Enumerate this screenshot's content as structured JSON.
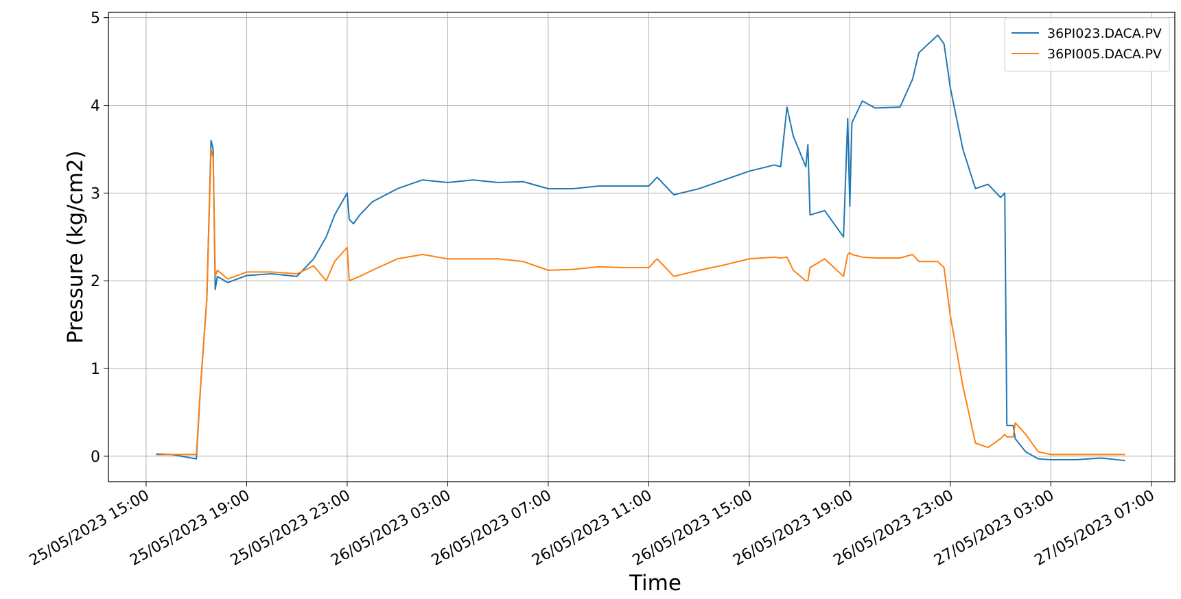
{
  "chart_data": {
    "type": "line",
    "x_label": "Time",
    "y_label": "Pressure (kg/cm2)",
    "x": [
      "2023-05-25T15:24",
      "2023-05-25T16:00",
      "2023-05-25T17:00",
      "2023-05-25T17:10",
      "2023-05-25T17:25",
      "2023-05-25T17:35",
      "2023-05-25T17:40",
      "2023-05-25T17:45",
      "2023-05-25T17:50",
      "2023-05-25T18:15",
      "2023-05-25T19:00",
      "2023-05-25T20:00",
      "2023-05-25T21:00",
      "2023-05-25T21:40",
      "2023-05-25T22:10",
      "2023-05-25T22:30",
      "2023-05-25T23:00",
      "2023-05-25T23:05",
      "2023-05-25T23:15",
      "2023-05-25T23:30",
      "2023-05-26T00:00",
      "2023-05-26T01:00",
      "2023-05-26T02:00",
      "2023-05-26T03:00",
      "2023-05-26T04:00",
      "2023-05-26T05:00",
      "2023-05-26T06:00",
      "2023-05-26T07:00",
      "2023-05-26T08:00",
      "2023-05-26T09:00",
      "2023-05-26T10:00",
      "2023-05-26T11:00",
      "2023-05-26T11:20",
      "2023-05-26T12:00",
      "2023-05-26T13:00",
      "2023-05-26T14:00",
      "2023-05-26T15:00",
      "2023-05-26T16:00",
      "2023-05-26T16:15",
      "2023-05-26T16:30",
      "2023-05-26T16:45",
      "2023-05-26T17:15",
      "2023-05-26T17:20",
      "2023-05-26T17:25",
      "2023-05-26T18:00",
      "2023-05-26T18:45",
      "2023-05-26T18:55",
      "2023-05-26T19:00",
      "2023-05-26T19:05",
      "2023-05-26T19:30",
      "2023-05-26T20:00",
      "2023-05-26T21:00",
      "2023-05-26T21:30",
      "2023-05-26T21:45",
      "2023-05-26T22:30",
      "2023-05-26T22:45",
      "2023-05-26T23:00",
      "2023-05-26T23:30",
      "2023-05-27T00:00",
      "2023-05-27T00:30",
      "2023-05-27T01:00",
      "2023-05-27T01:10",
      "2023-05-27T01:15",
      "2023-05-27T01:30",
      "2023-05-27T01:35",
      "2023-05-27T02:00",
      "2023-05-27T02:30",
      "2023-05-27T03:00",
      "2023-05-27T04:00",
      "2023-05-27T05:00",
      "2023-05-27T05:57"
    ],
    "series": [
      {
        "name": "36PI023.DACA.PV",
        "color": "#1f77b4",
        "values": [
          0.02,
          0.02,
          -0.03,
          0.8,
          1.8,
          3.6,
          3.5,
          1.9,
          2.05,
          1.98,
          2.06,
          2.08,
          2.05,
          2.25,
          2.5,
          2.75,
          3.0,
          2.7,
          2.65,
          2.75,
          2.9,
          3.05,
          3.15,
          3.12,
          3.15,
          3.12,
          3.13,
          3.05,
          3.05,
          3.08,
          3.08,
          3.08,
          3.18,
          2.98,
          3.05,
          3.15,
          3.25,
          3.32,
          3.3,
          3.98,
          3.65,
          3.3,
          3.55,
          2.75,
          2.8,
          2.5,
          3.85,
          2.85,
          3.8,
          4.05,
          3.97,
          3.98,
          4.3,
          4.6,
          4.8,
          4.7,
          4.2,
          3.5,
          3.05,
          3.1,
          2.95,
          3.0,
          0.35,
          0.35,
          0.2,
          0.05,
          -0.03,
          -0.04,
          -0.04,
          -0.02,
          -0.05
        ]
      },
      {
        "name": "36PI005.DACA.PV",
        "color": "#ff7f0e",
        "values": [
          0.03,
          0.02,
          0.02,
          0.8,
          1.8,
          3.5,
          3.4,
          2.05,
          2.12,
          2.02,
          2.1,
          2.1,
          2.08,
          2.17,
          2.0,
          2.22,
          2.38,
          2.0,
          2.02,
          2.05,
          2.12,
          2.25,
          2.3,
          2.25,
          2.25,
          2.25,
          2.22,
          2.12,
          2.13,
          2.16,
          2.15,
          2.15,
          2.25,
          2.05,
          2.12,
          2.18,
          2.25,
          2.27,
          2.26,
          2.27,
          2.12,
          2.0,
          2.0,
          2.15,
          2.25,
          2.05,
          2.3,
          2.32,
          2.3,
          2.27,
          2.26,
          2.26,
          2.3,
          2.22,
          2.22,
          2.15,
          1.6,
          0.8,
          0.15,
          0.1,
          0.2,
          0.25,
          0.22,
          0.22,
          0.38,
          0.25,
          0.05,
          0.02,
          0.02,
          0.02,
          0.02
        ]
      }
    ],
    "xlim": [
      "2023-05-25T13:30",
      "2023-05-27T07:56"
    ],
    "xticks": [
      {
        "value": "2023-05-25T15:00",
        "label": "25/05/2023 15:00"
      },
      {
        "value": "2023-05-25T19:00",
        "label": "25/05/2023 19:00"
      },
      {
        "value": "2023-05-25T23:00",
        "label": "25/05/2023 23:00"
      },
      {
        "value": "2023-05-26T03:00",
        "label": "26/05/2023 03:00"
      },
      {
        "value": "2023-05-26T07:00",
        "label": "26/05/2023 07:00"
      },
      {
        "value": "2023-05-26T11:00",
        "label": "26/05/2023 11:00"
      },
      {
        "value": "2023-05-26T15:00",
        "label": "26/05/2023 15:00"
      },
      {
        "value": "2023-05-26T19:00",
        "label": "26/05/2023 19:00"
      },
      {
        "value": "2023-05-26T23:00",
        "label": "26/05/2023 23:00"
      },
      {
        "value": "2023-05-27T03:00",
        "label": "27/05/2023 03:00"
      },
      {
        "value": "2023-05-27T07:00",
        "label": "27/05/2023 07:00"
      }
    ],
    "ylim": [
      -0.29,
      5.06
    ],
    "yticks": [
      0,
      1,
      2,
      3,
      4,
      5
    ],
    "grid": true,
    "legend": "upper right"
  }
}
